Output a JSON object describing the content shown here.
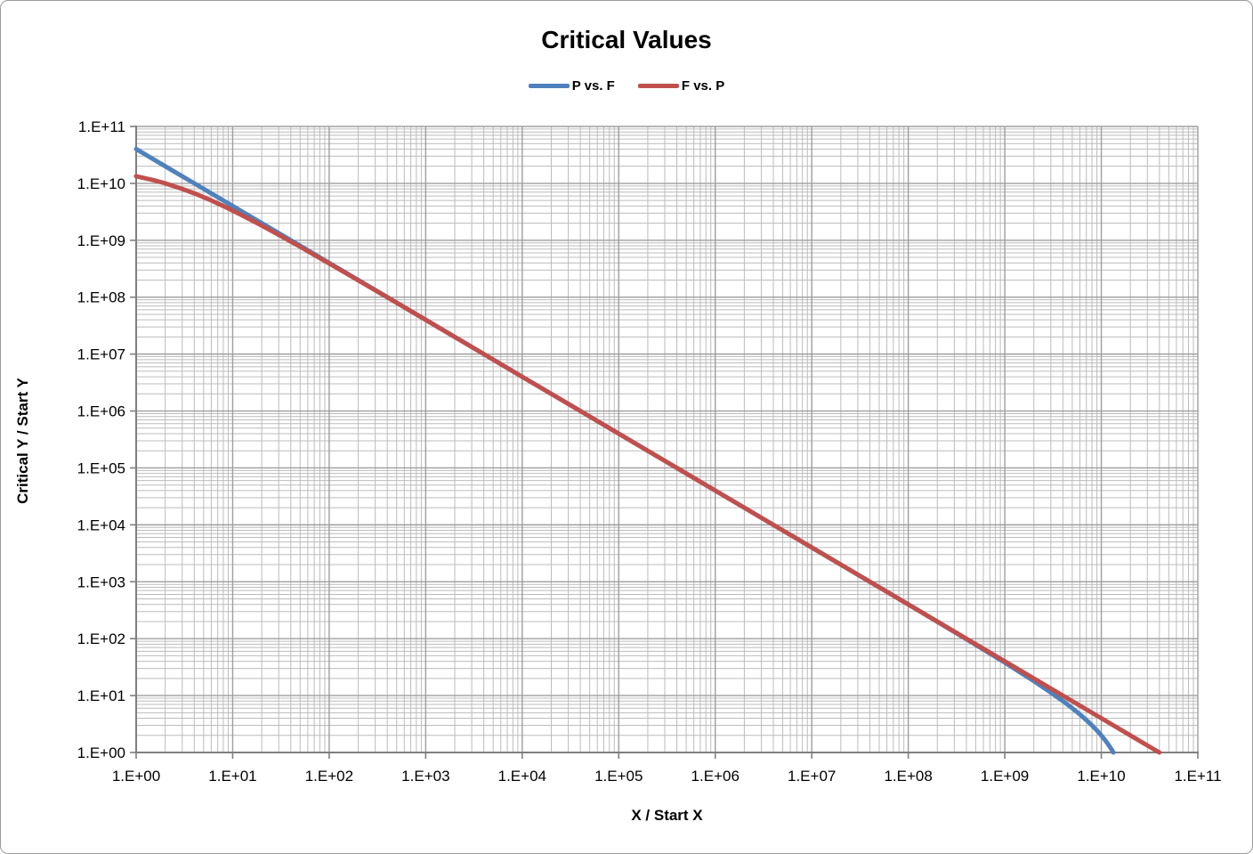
{
  "window": {
    "background": "#ffffff",
    "border_color": "#9b9b9b"
  },
  "chart_data": {
    "type": "line",
    "title": "Critical Values",
    "xlabel": "X / Start X",
    "ylabel": "Critical Y / Start Y",
    "x_scale": "log",
    "y_scale": "log",
    "xlim": [
      1,
      100000000000.0
    ],
    "ylim": [
      1,
      100000000000.0
    ],
    "x_tick_labels": [
      "1.E+00",
      "1.E+01",
      "1.E+02",
      "1.E+03",
      "1.E+04",
      "1.E+05",
      "1.E+06",
      "1.E+07",
      "1.E+08",
      "1.E+09",
      "1.E+10",
      "1.E+11"
    ],
    "y_tick_labels": [
      "1.E+00",
      "1.E+01",
      "1.E+02",
      "1.E+03",
      "1.E+04",
      "1.E+05",
      "1.E+06",
      "1.E+07",
      "1.E+08",
      "1.E+09",
      "1.E+10",
      "1.E+11"
    ],
    "grid": {
      "on": true,
      "minor_on": true,
      "major_color": "#9e9e9e",
      "minor_color": "#bcbcbc",
      "axis_color": "#7f7f7f"
    },
    "legend": {
      "position": "top-center",
      "entries": [
        {
          "label": "P vs. F",
          "color": "#4F81BD"
        },
        {
          "label": "F vs. P",
          "color": "#C0504D"
        }
      ]
    },
    "series": [
      {
        "name": "P vs. F",
        "color": "#4F81BD",
        "points": [
          [
            1,
            40000000000.0
          ],
          [
            2,
            20000000000.0
          ],
          [
            4,
            10000000000.0
          ],
          [
            8,
            5000000000.0
          ],
          [
            16,
            2500000000.0
          ],
          [
            40,
            1000000000.0
          ],
          [
            100,
            400000000.0
          ],
          [
            400,
            100000000.0
          ],
          [
            1000,
            40000000.0
          ],
          [
            4000,
            10000000.0
          ],
          [
            10000.0,
            4000000.0
          ],
          [
            40000.0,
            1000000.0
          ],
          [
            100000.0,
            400000.0
          ],
          [
            400000.0,
            100000.0
          ],
          [
            1000000.0,
            40000.0
          ],
          [
            4000000.0,
            10000.0
          ],
          [
            10000000.0,
            4000.0
          ],
          [
            40000000.0,
            1000.0
          ],
          [
            100000000.0,
            400.0
          ],
          [
            400000000.0,
            98
          ],
          [
            1000000000.0,
            38
          ],
          [
            2000000000.0,
            18
          ],
          [
            3000000000.0,
            11.3
          ],
          [
            4000000000.0,
            8
          ],
          [
            5000000000.0,
            6
          ],
          [
            6000000000.0,
            4.67
          ],
          [
            7000000000.0,
            3.71
          ],
          [
            8000000000.0,
            3
          ],
          [
            9000000000.0,
            2.44
          ],
          [
            10000000000.0,
            2
          ],
          [
            11000000000.0,
            1.64
          ],
          [
            12000000000.0,
            1.33
          ],
          [
            13000000000.0,
            1.08
          ],
          [
            13330000000.0,
            1
          ]
        ]
      },
      {
        "name": "F vs. P",
        "color": "#C0504D",
        "points": [
          [
            1,
            13330000000.0
          ],
          [
            1.5,
            11430000000.0
          ],
          [
            2,
            10000000000.0
          ],
          [
            3,
            8000000000.0
          ],
          [
            4,
            6670000000.0
          ],
          [
            6,
            5000000000.0
          ],
          [
            8,
            4000000000.0
          ],
          [
            12,
            2860000000.0
          ],
          [
            18,
            2000000000.0
          ],
          [
            28,
            1330000000.0
          ],
          [
            48,
            800000000.0
          ],
          [
            98,
            400000000.0
          ],
          [
            398,
            100000000.0
          ],
          [
            1000,
            39900000.0
          ],
          [
            4000,
            10000000.0
          ],
          [
            10000.0,
            4000000.0
          ],
          [
            40000.0,
            1000000.0
          ],
          [
            100000.0,
            400000.0
          ],
          [
            1000000.0,
            40000.0
          ],
          [
            10000000.0,
            4000.0
          ],
          [
            100000000.0,
            400.0
          ],
          [
            1000000000.0,
            40
          ],
          [
            3000000000.0,
            13.3
          ],
          [
            10000000000.0,
            4
          ],
          [
            20000000000.0,
            2
          ],
          [
            30000000000.0,
            1.33
          ],
          [
            40000000000.0,
            1
          ]
        ]
      }
    ]
  }
}
